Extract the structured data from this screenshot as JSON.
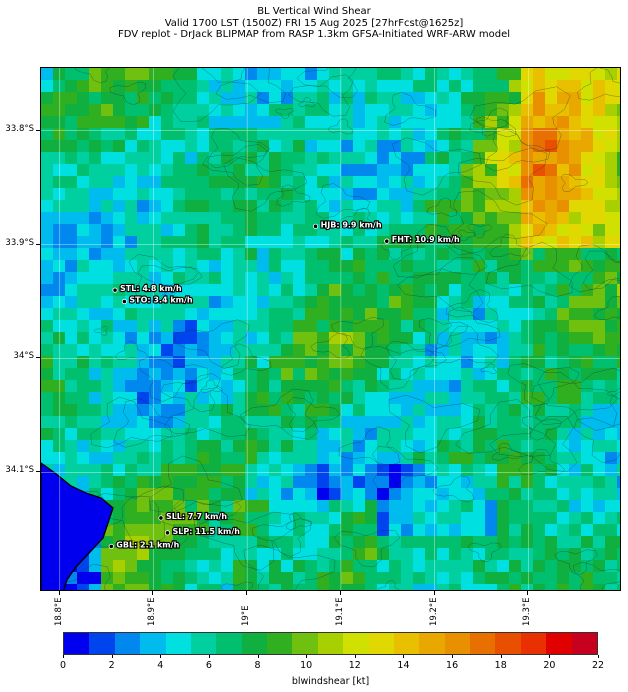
{
  "title": {
    "line1": "BL Vertical Wind Shear",
    "line2": "Valid 1700 LST (1500Z) FRI 15 Aug 2025 [27hrFcst@1625z]",
    "line3": "FDV replot - DrJack BLIPMAP from RASP 1.3km GFSA-Initiated WRF-ARW model"
  },
  "map": {
    "lon_range": [
      18.78,
      19.4
    ],
    "lat_range": [
      -34.205,
      -33.745
    ],
    "y_ticks": [
      {
        "lat": -33.8,
        "label": "33.8°S"
      },
      {
        "lat": -33.9,
        "label": "33.9°S"
      },
      {
        "lat": -34.0,
        "label": "34°S"
      },
      {
        "lat": -34.1,
        "label": "34.1°S"
      }
    ],
    "x_ticks": [
      {
        "lon": 18.8,
        "label": "18.8°E"
      },
      {
        "lon": 18.9,
        "label": "18.9°E"
      },
      {
        "lon": 19.0,
        "label": "19°E"
      },
      {
        "lon": 19.1,
        "label": "19.1°E"
      },
      {
        "lon": 19.2,
        "label": "19.2°E"
      },
      {
        "lon": 19.3,
        "label": "19.3°E"
      }
    ],
    "stations": [
      {
        "id": "HJB",
        "label": "HJB: 9.9 km/h",
        "lon": 19.073,
        "lat": -33.884,
        "value": 9.9
      },
      {
        "id": "FHT",
        "label": "FHT: 10.9 km/h",
        "lon": 19.149,
        "lat": -33.897,
        "value": 10.9
      },
      {
        "id": "STL",
        "label": "STL: 4.8 km/h",
        "lon": 18.859,
        "lat": -33.94,
        "value": 4.8
      },
      {
        "id": "STO",
        "label": "STO: 3.4 km/h",
        "lon": 18.869,
        "lat": -33.95,
        "value": 3.4
      },
      {
        "id": "SLL",
        "label": "SLL: 7.7 km/h",
        "lon": 18.908,
        "lat": -34.14,
        "value": 7.7
      },
      {
        "id": "SLP",
        "label": "SLP: 11.5 km/h",
        "lon": 18.915,
        "lat": -34.153,
        "value": 11.5
      },
      {
        "id": "GBL",
        "label": "GBL: 2.1 km/h",
        "lon": 18.855,
        "lat": -34.165,
        "value": 2.1
      }
    ]
  },
  "colorbar": {
    "label": "blwindshear [kt]",
    "min": 0,
    "max": 22,
    "tick_labels": [
      "0",
      "2",
      "4",
      "6",
      "8",
      "10",
      "12",
      "14",
      "16",
      "18",
      "20",
      "22"
    ],
    "colors": [
      "#0000ee",
      "#0044ee",
      "#0088ee",
      "#00bbee",
      "#00e0e0",
      "#00d0a0",
      "#00c070",
      "#10b040",
      "#30b020",
      "#70c010",
      "#a8d000",
      "#d0e000",
      "#e0d800",
      "#e8c000",
      "#e8a800",
      "#e89000",
      "#e87000",
      "#e85000",
      "#e83000",
      "#e00000",
      "#c80020"
    ]
  }
}
